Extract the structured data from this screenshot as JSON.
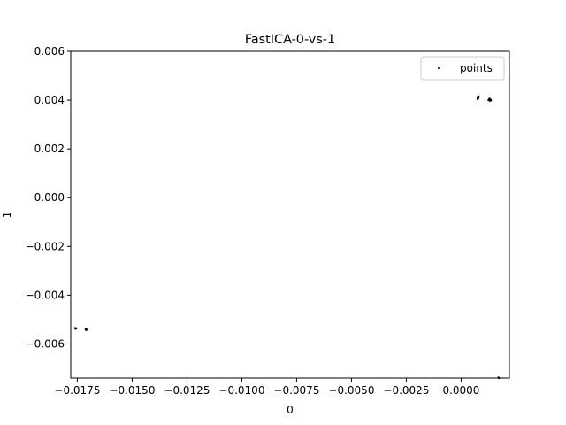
{
  "chart_data": {
    "type": "scatter",
    "title": "FastICA-0-vs-1",
    "xlabel": "0",
    "ylabel": "1",
    "xlim": [
      -0.0178,
      0.0022
    ],
    "ylim": [
      -0.0074,
      0.006
    ],
    "x_ticks": [
      -0.0175,
      -0.015,
      -0.0125,
      -0.01,
      -0.0075,
      -0.005,
      -0.0025,
      0.0
    ],
    "x_tick_labels": [
      "−0.0175",
      "−0.0150",
      "−0.0125",
      "−0.0100",
      "−0.0075",
      "−0.0050",
      "−0.0025",
      "0.0000"
    ],
    "y_ticks": [
      0.006,
      0.004,
      0.002,
      0.0,
      -0.002,
      -0.004,
      -0.006
    ],
    "y_tick_labels": [
      "0.006",
      "0.004",
      "0.002",
      "0.000",
      "−0.002",
      "−0.004",
      "−0.006"
    ],
    "legend": {
      "position": "top-right",
      "entries": [
        "points"
      ]
    },
    "grid": false,
    "series": [
      {
        "name": "points",
        "color": "#000000",
        "points": [
          [
            -0.0176,
            -0.00535
          ],
          [
            -0.01758,
            -0.00538
          ],
          [
            -0.01755,
            -0.00536
          ],
          [
            -0.01712,
            -0.0054
          ],
          [
            -0.0171,
            -0.00543
          ],
          [
            -0.01708,
            -0.00541
          ],
          [
            0.00075,
            0.00408
          ],
          [
            0.00077,
            0.00412
          ],
          [
            0.00078,
            0.00416
          ],
          [
            0.00079,
            0.0041
          ],
          [
            0.0008,
            0.00414
          ],
          [
            0.00076,
            0.00404
          ],
          [
            0.00125,
            0.004
          ],
          [
            0.00128,
            0.00404
          ],
          [
            0.00131,
            0.00398
          ],
          [
            0.00134,
            0.00402
          ],
          [
            0.0013,
            0.00406
          ],
          [
            0.00136,
            0.00399
          ],
          [
            0.0017,
            -0.00738
          ],
          [
            0.00172,
            -0.0074
          ]
        ]
      }
    ]
  }
}
